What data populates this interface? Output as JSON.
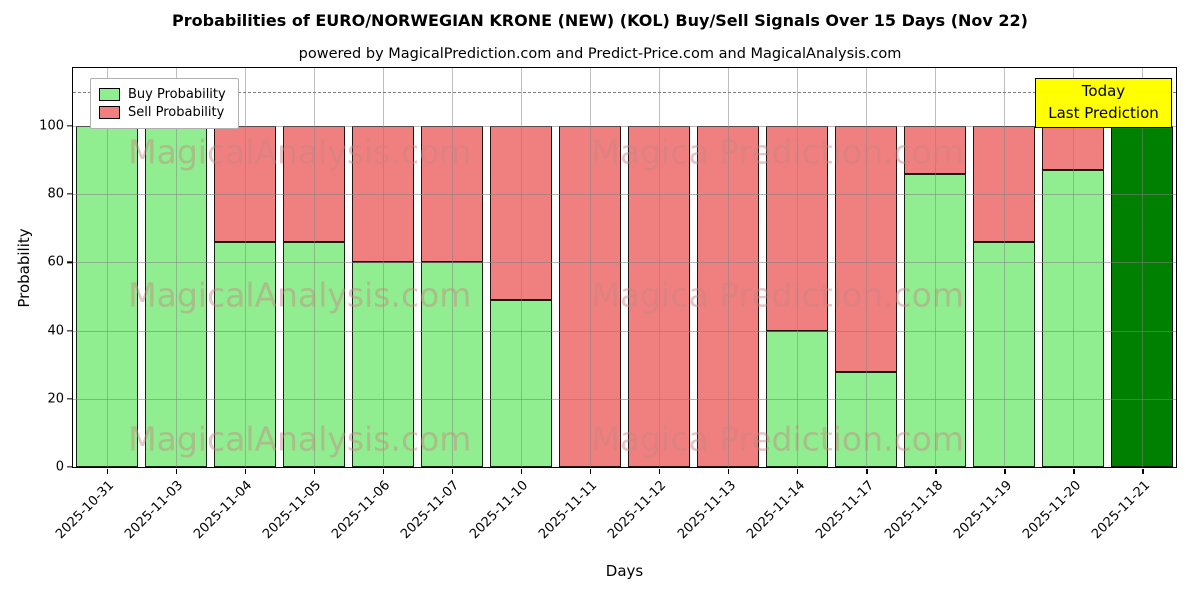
{
  "chart_data": {
    "type": "bar",
    "stacked": true,
    "title": "Probabilities of EURO/NORWEGIAN KRONE (NEW) (KOL) Buy/Sell Signals Over 15 Days (Nov 22)",
    "subtitle": "powered by MagicalPrediction.com and Predict-Price.com and MagicalAnalysis.com",
    "xlabel": "Days",
    "ylabel": "Probability",
    "categories": [
      "2025-10-31",
      "2025-11-03",
      "2025-11-04",
      "2025-11-05",
      "2025-11-06",
      "2025-11-07",
      "2025-11-10",
      "2025-11-11",
      "2025-11-12",
      "2025-11-13",
      "2025-11-14",
      "2025-11-17",
      "2025-11-18",
      "2025-11-19",
      "2025-11-20",
      "2025-11-21"
    ],
    "series": [
      {
        "name": "Buy Probability",
        "color": "#90ee90",
        "values": [
          100,
          100,
          66,
          66,
          60,
          60,
          49,
          0,
          0,
          0,
          40,
          28,
          86,
          66,
          87,
          100
        ]
      },
      {
        "name": "Sell Probability",
        "color": "#f08080",
        "values": [
          0,
          0,
          34,
          34,
          40,
          40,
          51,
          100,
          100,
          100,
          60,
          72,
          14,
          34,
          13,
          0
        ]
      }
    ],
    "today_index": 15,
    "today_color": "#008000",
    "ylim": [
      0,
      117
    ],
    "yticks": [
      0,
      20,
      40,
      60,
      80,
      100
    ],
    "dashed_line_y": 110,
    "grid": true,
    "legend_position": "upper left",
    "annotation": {
      "line1": "Today",
      "line2": "Last Prediction"
    },
    "watermarks": [
      "MagicalAnalysis.com",
      "Magica Prediction.com"
    ]
  }
}
